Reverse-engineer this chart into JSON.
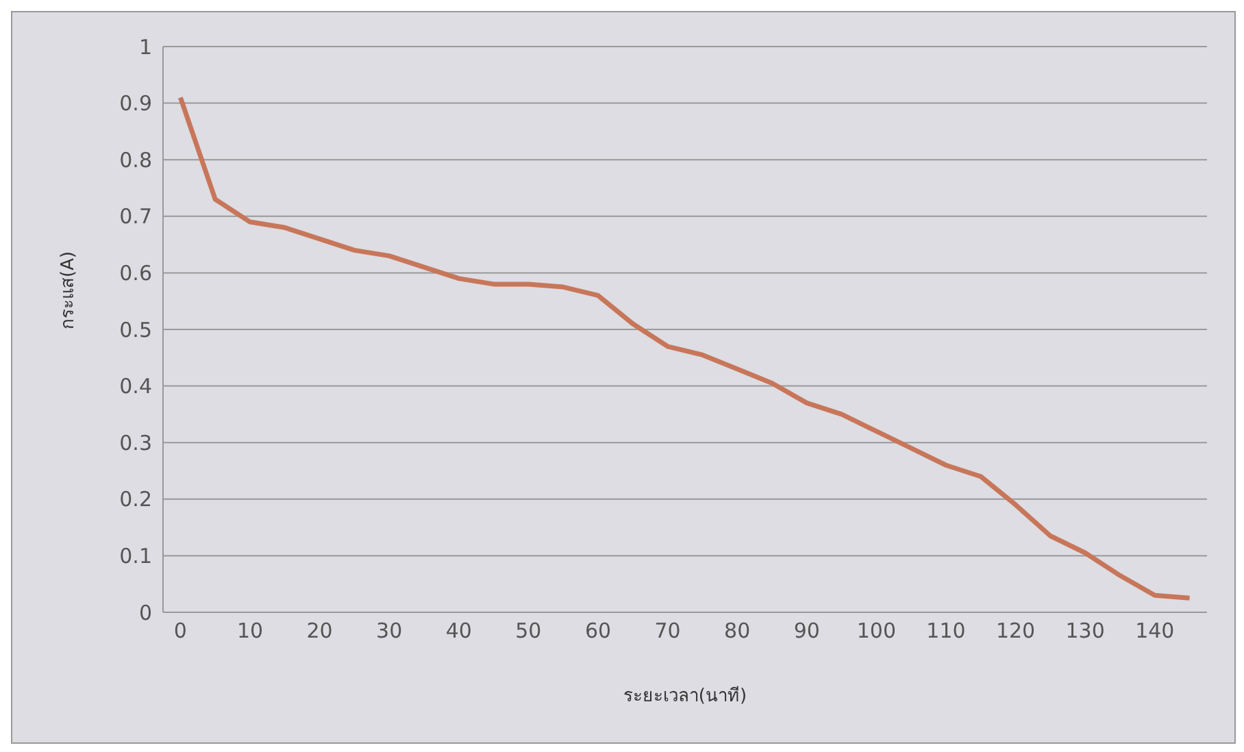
{
  "chart_data": {
    "type": "line",
    "xlabel": "ระยะเวลา(นาที)",
    "ylabel": "กระแส(A)",
    "x": [
      0,
      5,
      10,
      15,
      20,
      25,
      30,
      35,
      40,
      45,
      50,
      55,
      60,
      65,
      70,
      75,
      80,
      85,
      90,
      95,
      100,
      105,
      110,
      115,
      120,
      125,
      130,
      135,
      140,
      145
    ],
    "series": [
      {
        "color": "#c8765a",
        "values": [
          0.91,
          0.73,
          0.69,
          0.68,
          0.66,
          0.64,
          0.63,
          0.61,
          0.59,
          0.58,
          0.58,
          0.575,
          0.56,
          0.51,
          0.47,
          0.455,
          0.43,
          0.405,
          0.37,
          0.35,
          0.32,
          0.29,
          0.26,
          0.24,
          0.19,
          0.135,
          0.105,
          0.065,
          0.03,
          0.025
        ]
      }
    ],
    "xlim": [
      -2.5,
      147.5
    ],
    "xticks": [
      0,
      10,
      20,
      30,
      40,
      50,
      60,
      70,
      80,
      90,
      100,
      110,
      120,
      130,
      140
    ],
    "ylim": [
      0,
      1
    ],
    "yticks": [
      0,
      0.1,
      0.2,
      0.3,
      0.4,
      0.5,
      0.6,
      0.7,
      0.8,
      0.9,
      1
    ],
    "grid": "y",
    "legend": false,
    "marker": "none",
    "line_style": "solid"
  }
}
